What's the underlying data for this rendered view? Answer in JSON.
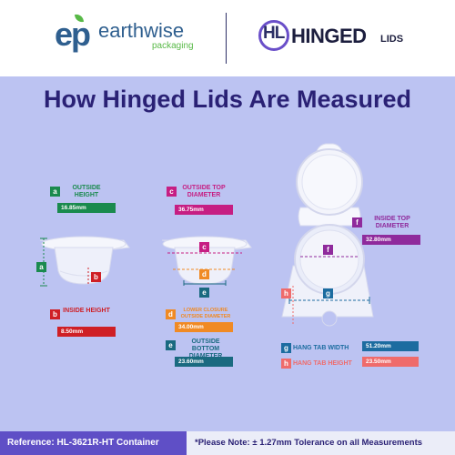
{
  "brands": {
    "earthwise": {
      "mark": "ep",
      "name": "earthwise",
      "tagline": "packaging"
    },
    "hingedlids": {
      "mark": "HL",
      "name": "HINGED",
      "suffix": "LIDS"
    }
  },
  "title": "How Hinged Lids Are Measured",
  "measurements": {
    "a": {
      "letter": "a",
      "label": "OUTSIDE HEIGHT",
      "value": "16.85mm",
      "color": "#1a8a4e"
    },
    "b": {
      "letter": "b",
      "label": "INSIDE HEIGHT",
      "value": "8.50mm",
      "color": "#cf1f25"
    },
    "c": {
      "letter": "c",
      "label": "OUTSIDE TOP DIAMETER",
      "value": "36.75mm",
      "color": "#c61e83"
    },
    "d": {
      "letter": "d",
      "label": "LOWER CLOSURE OUTSIDE DIAMETER",
      "value": "34.00mm",
      "color": "#f08a24"
    },
    "e": {
      "letter": "e",
      "label": "OUTSIDE BOTTOM DIAMETER",
      "value": "23.60mm",
      "color": "#1a6a80"
    },
    "f": {
      "letter": "f",
      "label": "INSIDE TOP DIAMETER",
      "value": "32.80mm",
      "color": "#8f2a9c"
    },
    "g": {
      "letter": "g",
      "label": "HANG TAB WIDTH",
      "value": "51.20mm",
      "color": "#1c6ca0"
    },
    "h": {
      "letter": "h",
      "label": "HANG TAB HEIGHT",
      "value": "23.50mm",
      "color": "#ef6b6b"
    }
  },
  "footer": {
    "reference": "Reference: HL-3621R-HT Container",
    "note": "*Please Note: ± 1.27mm Tolerance on all Measurements"
  }
}
